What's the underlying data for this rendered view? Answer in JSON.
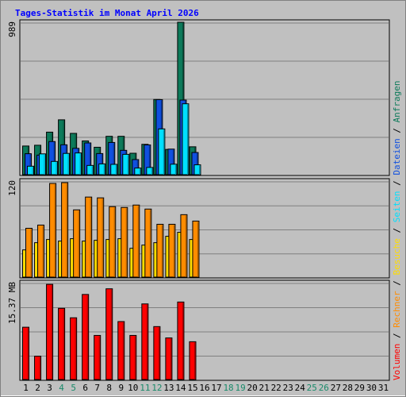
{
  "title": "Tages-Statistik im Monat April 2026",
  "right_legend": [
    {
      "text": "Volumen",
      "color": "#ff0000"
    },
    {
      "text": " / ",
      "color": "#000000"
    },
    {
      "text": "Rechner",
      "color": "#ff8c00"
    },
    {
      "text": " / ",
      "color": "#000000"
    },
    {
      "text": "Besuche",
      "color": "#ffdd00"
    },
    {
      "text": " / ",
      "color": "#000000"
    },
    {
      "text": "Seiten",
      "color": "#00e0ff"
    },
    {
      "text": " / ",
      "color": "#000000"
    },
    {
      "text": "Dateien",
      "color": "#1050e0"
    },
    {
      "text": " / ",
      "color": "#000000"
    },
    {
      "text": "Anfragen",
      "color": "#0d7a5a"
    }
  ],
  "colors": {
    "background": "#c0c0c0",
    "grid": "#808080",
    "title": "#0000ff",
    "weekday_label": "#000000",
    "weekend_label": "#1a8a6a"
  },
  "chart_data": [
    {
      "type": "bar",
      "name": "top",
      "axis_max_label": "989",
      "ylim": [
        0,
        989
      ],
      "days": [
        1,
        2,
        3,
        4,
        5,
        6,
        7,
        8,
        9,
        10,
        11,
        12,
        13,
        14,
        15
      ],
      "series": [
        {
          "name": "Anfragen",
          "color": "#0d7a5a",
          "values": [
            186,
            191,
            276,
            356,
            268,
            219,
            178,
            249,
            249,
            139,
            197,
            488,
            164,
            989,
            181
          ]
        },
        {
          "name": "Dateien",
          "color": "#1050e0",
          "values": [
            136,
            127,
            215,
            194,
            171,
            206,
            137,
            209,
            158,
            98,
            193,
            487,
            166,
            484,
            144
          ]
        },
        {
          "name": "Seiten",
          "color": "#00e0ff",
          "values": [
            55,
            135,
            86,
            138,
            141,
            60,
            70,
            67,
            132,
            43,
            47,
            297,
            68,
            460,
            64
          ]
        }
      ]
    },
    {
      "type": "bar",
      "name": "middle",
      "axis_max_label": "120",
      "ylim": [
        0,
        120
      ],
      "days": [
        1,
        2,
        3,
        4,
        5,
        6,
        7,
        8,
        9,
        10,
        11,
        12,
        13,
        14,
        15
      ],
      "series": [
        {
          "name": "Besuche",
          "color": "#ffdd00",
          "values": [
            34,
            43,
            47,
            45,
            48,
            45,
            46,
            47,
            48,
            36,
            40,
            43,
            51,
            56,
            47
          ]
        },
        {
          "name": "Rechner",
          "color": "#ff8c00",
          "values": [
            61,
            65,
            117,
            118,
            84,
            100,
            99,
            88,
            87,
            90,
            85,
            66,
            66,
            78,
            70
          ]
        }
      ]
    },
    {
      "type": "bar",
      "name": "bottom",
      "axis_max_label": "15.37 MB",
      "ylim": [
        0,
        15.37
      ],
      "days": [
        1,
        2,
        3,
        4,
        5,
        6,
        7,
        8,
        9,
        10,
        11,
        12,
        13,
        14,
        15
      ],
      "series": [
        {
          "name": "Volumen",
          "color": "#ff0000",
          "values": [
            8.3,
            3.7,
            15.1,
            11.3,
            9.8,
            13.5,
            7.0,
            14.4,
            9.2,
            7.0,
            12.0,
            8.4,
            6.6,
            12.3,
            6.0
          ]
        }
      ]
    }
  ],
  "x_axis": {
    "labels": [
      "1",
      "2",
      "3",
      "4",
      "5",
      "6",
      "7",
      "8",
      "9",
      "10",
      "11",
      "12",
      "13",
      "14",
      "15",
      "16",
      "17",
      "18",
      "19",
      "20",
      "21",
      "22",
      "23",
      "24",
      "25",
      "26",
      "27",
      "28",
      "29",
      "30",
      "31"
    ],
    "weekend_days": [
      4,
      5,
      11,
      12,
      18,
      19,
      25,
      26
    ]
  }
}
